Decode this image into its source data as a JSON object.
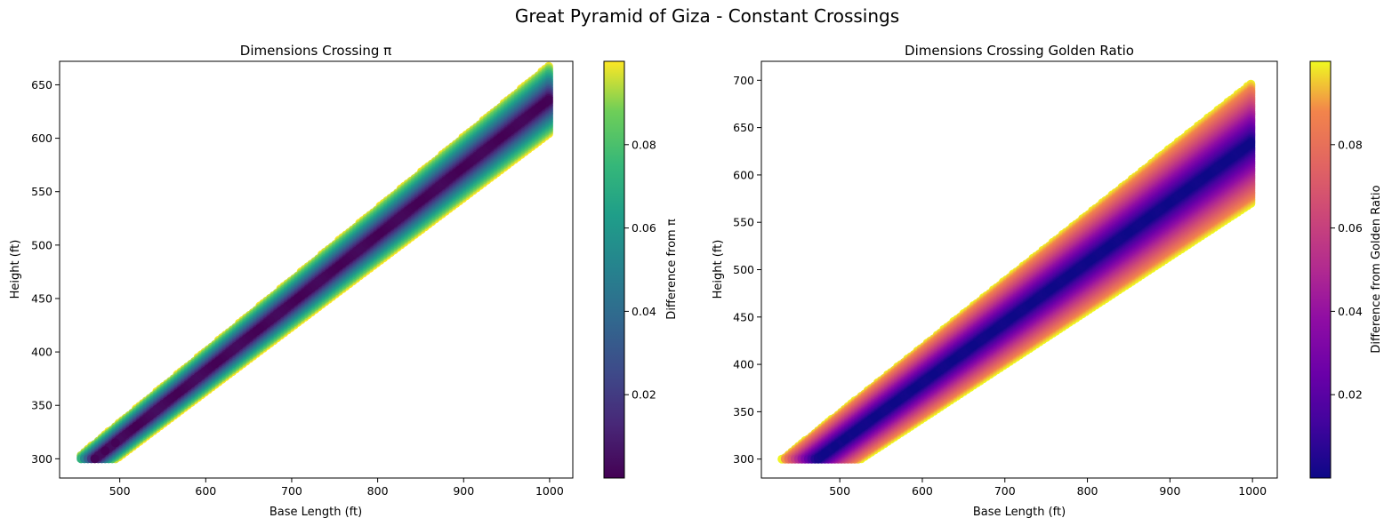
{
  "figure": {
    "title": "Great Pyramid of Giza - Constant Crossings"
  },
  "chart_data": [
    {
      "type": "scatter",
      "title": "Dimensions Crossing π",
      "xlabel": "Base Length (ft)",
      "ylabel": "Height (ft)",
      "xlim": [
        430,
        1027
      ],
      "ylim": [
        282,
        672
      ],
      "xticks": [
        "500",
        "600",
        "700",
        "800",
        "900",
        "1000"
      ],
      "yticks": [
        "300",
        "350",
        "400",
        "450",
        "500",
        "550",
        "600",
        "650"
      ],
      "grid": false,
      "constant_ratio": 0.6366,
      "band_half_width": 0.0318,
      "x_range": [
        455,
        1000
      ],
      "y_min": 300,
      "colormap": "viridis",
      "colorbar": {
        "label": "Difference from π",
        "range": [
          0,
          0.1
        ],
        "ticks": [
          "0.02",
          "0.04",
          "0.06",
          "0.08"
        ]
      }
    },
    {
      "type": "scatter",
      "title": "Dimensions Crossing Golden Ratio",
      "xlabel": "Base Length (ft)",
      "ylabel": "Height (ft)",
      "xlim": [
        405,
        1030
      ],
      "ylim": [
        280,
        720
      ],
      "xticks": [
        "500",
        "600",
        "700",
        "800",
        "900",
        "1000"
      ],
      "yticks": [
        "300",
        "350",
        "400",
        "450",
        "500",
        "550",
        "600",
        "650",
        "700"
      ],
      "grid": false,
      "constant_ratio": 0.6345,
      "band_half_width": 0.0635,
      "x_range": [
        430,
        1000
      ],
      "y_min": 300,
      "colormap": "plasma",
      "colorbar": {
        "label": "Difference from Golden Ratio",
        "range": [
          0,
          0.1
        ],
        "ticks": [
          "0.02",
          "0.04",
          "0.06",
          "0.08"
        ]
      }
    }
  ]
}
